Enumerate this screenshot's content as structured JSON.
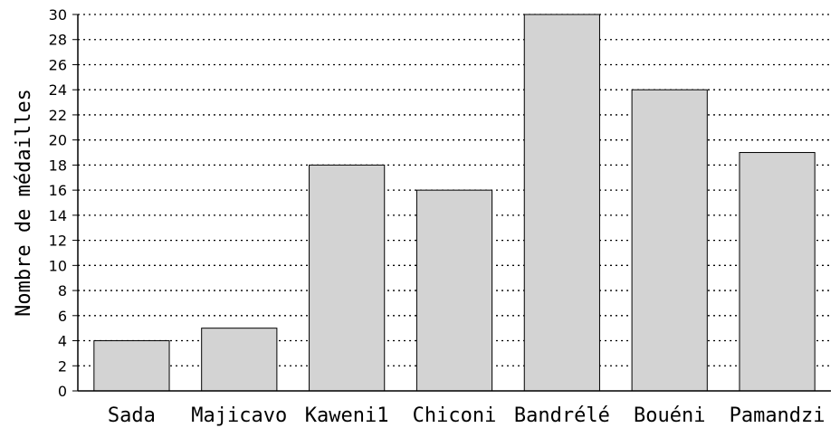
{
  "chart_data": {
    "type": "bar",
    "title": "",
    "xlabel": "",
    "ylabel": "Nombre de médailles",
    "ylim": [
      0,
      30
    ],
    "yticks": [
      0,
      2,
      4,
      6,
      8,
      10,
      12,
      14,
      16,
      18,
      20,
      22,
      24,
      26,
      28,
      30
    ],
    "grid": true,
    "bar_color": "#d3d3d3",
    "categories": [
      "Sada",
      "Majicavo",
      "Kaweni1",
      "Chiconi",
      "Bandrélé",
      "Bouéni",
      "Pamandzi"
    ],
    "values": [
      4,
      5,
      18,
      16,
      30,
      24,
      19
    ]
  }
}
